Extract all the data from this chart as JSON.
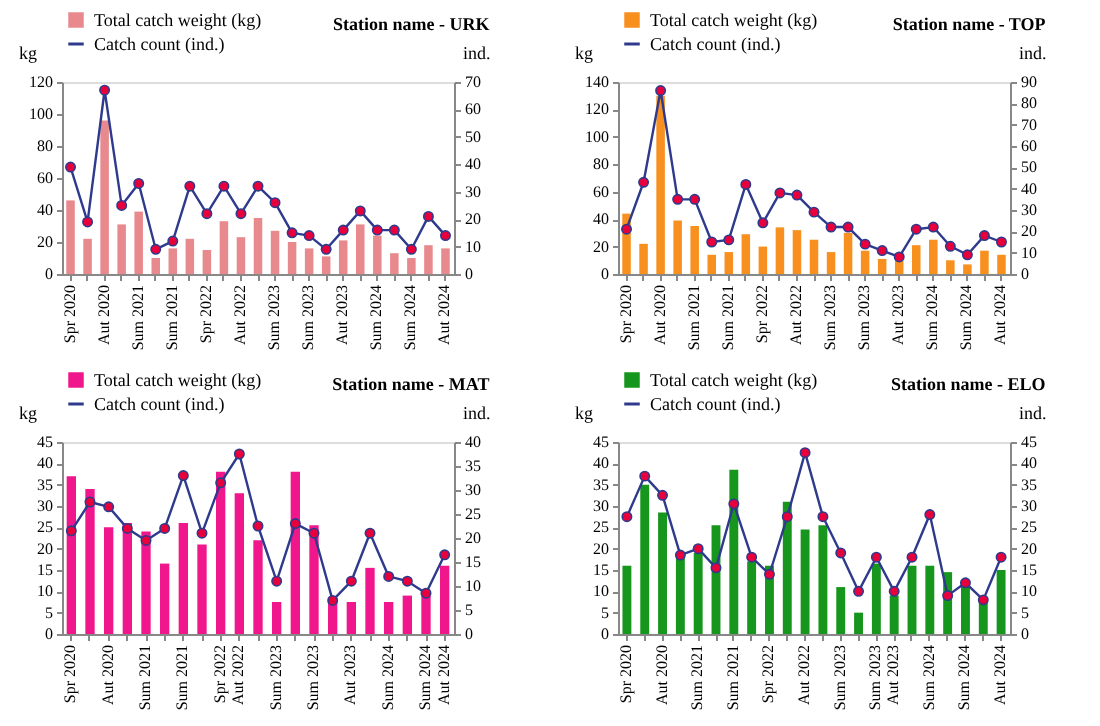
{
  "chart_data": [
    {
      "type": "bar",
      "title": "Station name - URK",
      "ylabel": "kg",
      "y2label": "ind.",
      "legend": "top left",
      "grid": false,
      "marker": "circle",
      "categories": [
        "Spr 2020",
        null,
        "Aut 2020",
        null,
        "Sum 2021",
        null,
        "Sum 2021",
        null,
        "Spr 2022",
        null,
        "Aut 2022",
        null,
        "Sum 2023",
        null,
        "Sum 2023",
        null,
        "Aut 2023",
        null,
        "Sum 2024",
        null,
        "Sum 2024",
        null,
        "Aut 2024"
      ],
      "ylim": [
        0,
        120
      ],
      "yticks": [
        0,
        20,
        40,
        60,
        80,
        100,
        120
      ],
      "y2lim": [
        0,
        70
      ],
      "y2ticks": [
        0,
        10,
        20,
        30,
        40,
        50,
        60,
        70
      ],
      "series": [
        {
          "name": "Total catch weight (kg)",
          "color": "#e8898e",
          "values": [
            46,
            22,
            96,
            31,
            39,
            10,
            16,
            22,
            15,
            33,
            23,
            35,
            27,
            20,
            16,
            11,
            21,
            31,
            24,
            13,
            10,
            18,
            16
          ]
        },
        {
          "name": "Catch count (ind.)",
          "type": "line",
          "axis": "y2",
          "color": "#2e3a8c",
          "values": [
            39,
            19,
            67,
            25,
            33,
            9,
            12,
            32,
            22,
            32,
            22,
            32,
            26,
            15,
            14,
            9,
            16,
            23,
            16,
            16,
            9,
            21,
            14
          ]
        }
      ]
    },
    {
      "type": "bar",
      "title": "Station name - TOP",
      "ylabel": "kg",
      "y2label": "ind.",
      "legend": "top left",
      "grid": false,
      "marker": "circle",
      "categories": [
        "Spr 2020",
        null,
        "Aut 2020",
        null,
        "Sum 2021",
        null,
        "Sum 2021",
        null,
        "Spr 2022",
        null,
        "Aut 2022",
        null,
        "Sum 2023",
        null,
        "Sum 2023",
        null,
        "Aut 2023",
        null,
        "Sum 2024",
        null,
        "Sum 2024",
        null,
        "Aut 2024"
      ],
      "ylim": [
        0,
        140
      ],
      "yticks": [
        0,
        20,
        40,
        60,
        80,
        100,
        120,
        140
      ],
      "y2lim": [
        0,
        90
      ],
      "y2ticks": [
        0,
        10,
        20,
        30,
        40,
        50,
        60,
        70,
        80,
        90
      ],
      "series": [
        {
          "name": "Total catch weight (kg)",
          "color": "#f7901e",
          "values": [
            44,
            22,
            130,
            39,
            35,
            14,
            16,
            29,
            20,
            34,
            32,
            25,
            16,
            30,
            17,
            11,
            10,
            21,
            25,
            10,
            7,
            17,
            14
          ]
        },
        {
          "name": "Catch count (ind.)",
          "type": "line",
          "axis": "y2",
          "color": "#2e3a8c",
          "values": [
            21,
            43,
            86,
            35,
            35,
            15,
            16,
            42,
            24,
            38,
            37,
            29,
            22,
            22,
            14,
            11,
            8,
            21,
            22,
            13,
            9,
            18,
            15
          ]
        }
      ]
    },
    {
      "type": "bar",
      "title": "Station name - MAT",
      "ylabel": "kg",
      "y2label": "ind.",
      "legend": "top left",
      "grid": false,
      "marker": "circle",
      "categories": [
        "Spr 2020",
        null,
        "Aut 2020",
        null,
        "Sum 2021",
        null,
        "Sum 2021",
        null,
        "Spr 2022",
        "Aut 2022",
        null,
        "Sum 2023",
        null,
        "Sum 2023",
        null,
        "Aut 2023",
        null,
        "Sum 2024",
        null,
        "Sum 2024",
        "Aut 2024"
      ],
      "ylim": [
        0,
        45
      ],
      "yticks": [
        0,
        5,
        10,
        15,
        20,
        25,
        30,
        35,
        40,
        45
      ],
      "y2lim": [
        0,
        40
      ],
      "y2ticks": [
        0,
        5,
        10,
        15,
        20,
        25,
        30,
        35,
        40
      ],
      "series": [
        {
          "name": "Total catch weight (kg)",
          "color": "#f0168c",
          "values": [
            37,
            34,
            25,
            26,
            24,
            16.5,
            26,
            21,
            38,
            33,
            22,
            7.5,
            38,
            25.5,
            8.5,
            7.5,
            15.5,
            7.5,
            9,
            9.5,
            16
          ]
        },
        {
          "name": "Catch count (ind.)",
          "type": "line",
          "axis": "y2",
          "color": "#2e3a8c",
          "values": [
            21.5,
            27.5,
            26.5,
            22,
            19.5,
            22,
            33,
            21,
            31.5,
            37.5,
            22.5,
            11,
            23,
            21,
            7,
            11,
            21,
            12,
            11,
            8.5,
            16.5
          ]
        }
      ]
    },
    {
      "type": "bar",
      "title": "Station name - ELO",
      "ylabel": "kg",
      "y2label": "ind.",
      "legend": "top left",
      "grid": false,
      "marker": "circle",
      "categories": [
        "Spr 2020",
        null,
        "Aut 2020",
        null,
        "Sum 2021",
        null,
        "Sum 2021",
        null,
        "Spr 2022",
        null,
        "Aut 2022",
        null,
        "Sum 2023",
        null,
        "Sum 2023",
        "Aut 2023",
        null,
        "Sum 2024",
        null,
        "Sum 2024",
        null,
        "Aut 2024"
      ],
      "ylim": [
        0,
        45
      ],
      "yticks": [
        0,
        5,
        10,
        15,
        20,
        25,
        30,
        35,
        40,
        45
      ],
      "y2lim": [
        0,
        45
      ],
      "y2ticks": [
        0,
        5,
        10,
        15,
        20,
        25,
        30,
        35,
        40,
        45
      ],
      "series": [
        {
          "name": "Total catch weight (kg)",
          "color": "#16961c",
          "values": [
            16,
            35,
            28.5,
            18,
            19,
            25.5,
            38.5,
            17,
            16,
            31,
            24.5,
            25.5,
            11,
            5,
            16.5,
            9,
            16,
            16,
            14.5,
            11.5,
            8,
            15
          ]
        },
        {
          "name": "Catch count (ind.)",
          "type": "line",
          "axis": "y2",
          "color": "#2e3a8c",
          "values": [
            27.5,
            37,
            32.5,
            18.5,
            20,
            15.5,
            30.5,
            18,
            14,
            27.5,
            42.5,
            27.5,
            19,
            10,
            18,
            10,
            18,
            28,
            9,
            12,
            8,
            18
          ]
        }
      ]
    }
  ]
}
